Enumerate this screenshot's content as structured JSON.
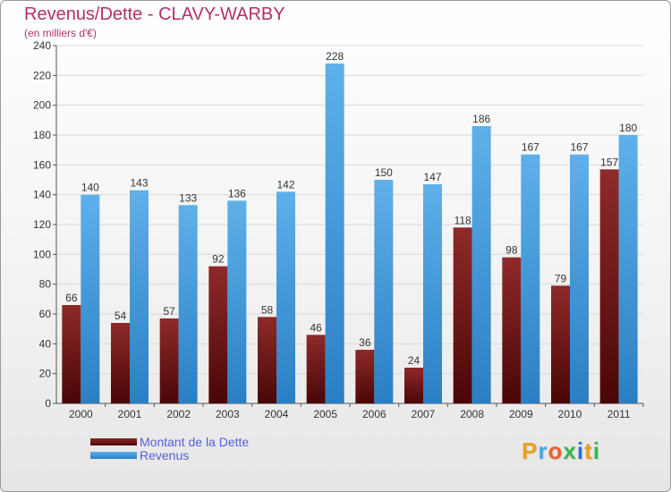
{
  "chart_data": {
    "type": "bar",
    "title": "Revenus/Dette - CLAVY-WARBY",
    "subtitle": "(en milliers d'€)",
    "xlabel": "",
    "ylabel": "",
    "ylim": [
      0,
      240
    ],
    "yticks": [
      0,
      20,
      40,
      60,
      80,
      100,
      120,
      140,
      160,
      180,
      200,
      220,
      240
    ],
    "grid": true,
    "categories": [
      "2000",
      "2001",
      "2002",
      "2003",
      "2004",
      "2005",
      "2006",
      "2007",
      "2008",
      "2009",
      "2010",
      "2011"
    ],
    "series": [
      {
        "name": "Montant de la Dette",
        "color": "#7a1a1a",
        "values": [
          66,
          54,
          57,
          92,
          58,
          46,
          36,
          24,
          118,
          98,
          79,
          157
        ]
      },
      {
        "name": "Revenus",
        "color": "#3a9be0",
        "values": [
          140,
          143,
          133,
          136,
          142,
          228,
          150,
          147,
          186,
          167,
          167,
          180
        ]
      }
    ],
    "legend_position": "bottom-left"
  },
  "logo": {
    "letters": [
      "P",
      "r",
      "o",
      "x",
      "i",
      "t",
      "i"
    ],
    "colors": [
      "#e8a020",
      "#4aa8e0",
      "#e8602a",
      "#3ab54a",
      "#2b6fd0",
      "#e8a020",
      "#3ab54a"
    ]
  }
}
